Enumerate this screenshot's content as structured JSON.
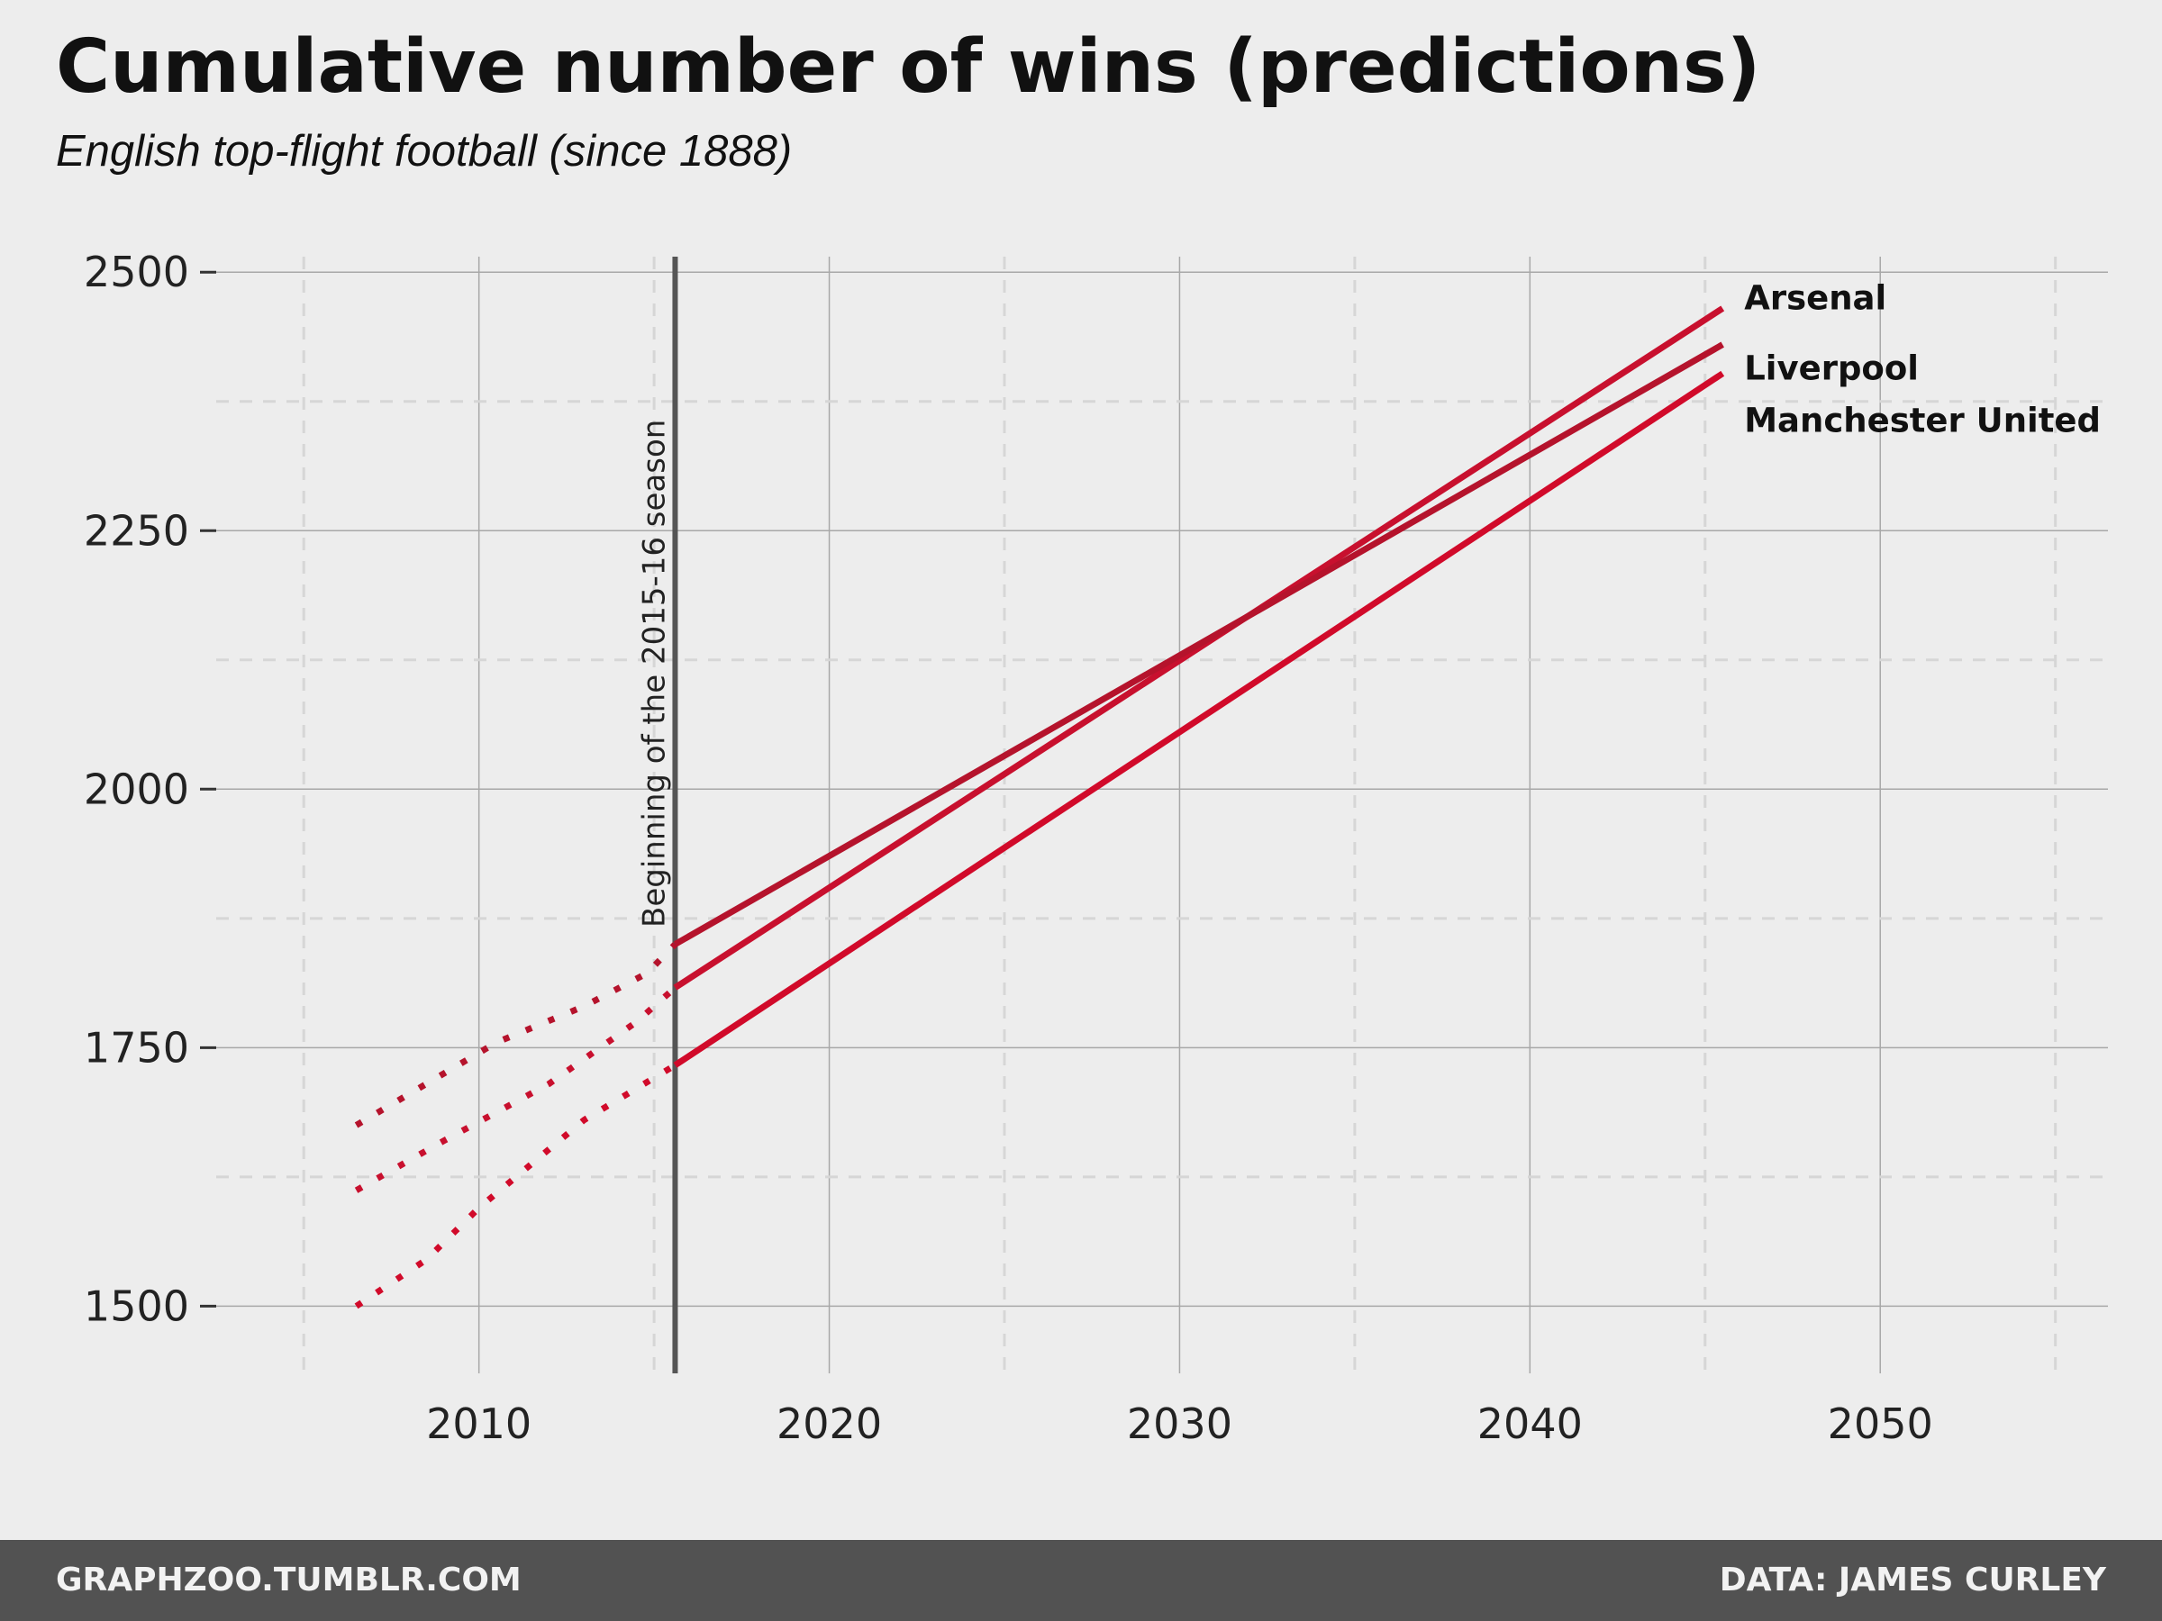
{
  "header": {
    "title": "Cumulative number of wins (predictions)",
    "subtitle": "English top-flight football (since 1888)"
  },
  "footer": {
    "left": "GRAPHZOO.TUMBLR.COM",
    "right": "DATA: JAMES CURLEY"
  },
  "chart_data": {
    "type": "line",
    "title": "Cumulative number of wins (predictions)",
    "subtitle": "English top-flight football (since 1888)",
    "xlabel": "",
    "ylabel": "",
    "xlim": [
      2002.5,
      2056.5
    ],
    "ylim": [
      1435,
      2515
    ],
    "x_ticks": [
      2010,
      2020,
      2030,
      2040,
      2050
    ],
    "y_ticks": [
      1500,
      1750,
      2000,
      2250,
      2500
    ],
    "grid": true,
    "vline": {
      "x": 2015.6,
      "label": "Beginning of the 2015-16 season"
    },
    "series": [
      {
        "name": "Arsenal",
        "color": "#c8102e",
        "observed": {
          "x": [
            2006.5,
            2009,
            2012,
            2014.5,
            2015.6
          ],
          "y": [
            1612,
            1660,
            1715,
            1775,
            1808
          ]
        },
        "predicted": {
          "x": [
            2015.6,
            2045.5
          ],
          "y": [
            1808,
            2465
          ]
        }
      },
      {
        "name": "Liverpool",
        "color": "#b5132c",
        "observed": {
          "x": [
            2006.5,
            2009,
            2010.5,
            2013,
            2014.8,
            2015.6
          ],
          "y": [
            1675,
            1725,
            1755,
            1790,
            1822,
            1850
          ]
        },
        "predicted": {
          "x": [
            2015.6,
            2045.5
          ],
          "y": [
            1850,
            2430
          ]
        }
      },
      {
        "name": "Manchester United",
        "color": "#d10a2a",
        "observed": {
          "x": [
            2006.5,
            2008.5,
            2010,
            2013,
            2015.6
          ],
          "y": [
            1500,
            1545,
            1595,
            1680,
            1733
          ]
        },
        "predicted": {
          "x": [
            2015.6,
            2045.5
          ],
          "y": [
            1733,
            2402
          ]
        }
      }
    ]
  }
}
